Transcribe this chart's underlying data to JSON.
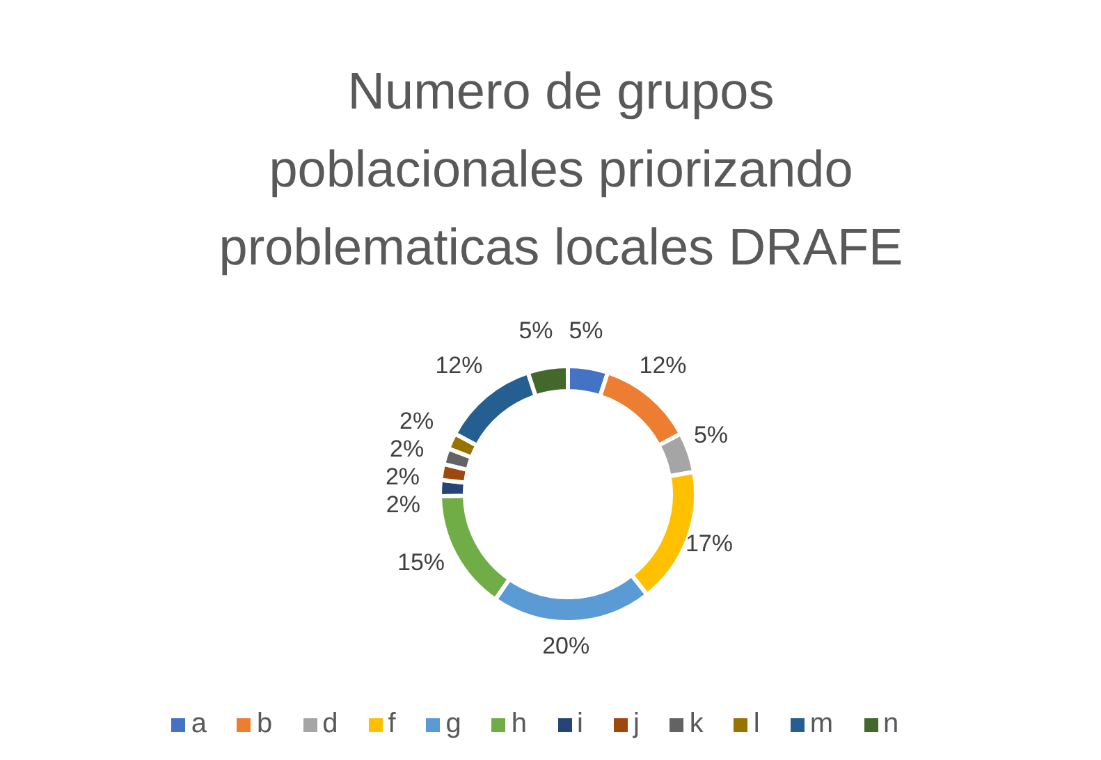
{
  "chart_data": {
    "type": "donut",
    "title": "Numero de grupos poblacionales priorizando problematicas locales DRAFE",
    "categories": [
      "a",
      "b",
      "d",
      "f",
      "g",
      "h",
      "i",
      "j",
      "k",
      "l",
      "m",
      "n"
    ],
    "values": [
      5,
      12,
      5,
      17,
      20,
      15,
      2,
      2,
      2,
      2,
      12,
      5
    ],
    "value_labels": [
      "5%",
      "12%",
      "5%",
      "17%",
      "20%",
      "15%",
      "2%",
      "2%",
      "2%",
      "2%",
      "12%",
      "5%"
    ],
    "colors": [
      "#4472c4",
      "#ed7d31",
      "#a5a5a5",
      "#ffc000",
      "#5b9bd5",
      "#70ad47",
      "#264478",
      "#9e480e",
      "#636363",
      "#997300",
      "#255e91",
      "#43682b"
    ],
    "legend": "bottom"
  }
}
